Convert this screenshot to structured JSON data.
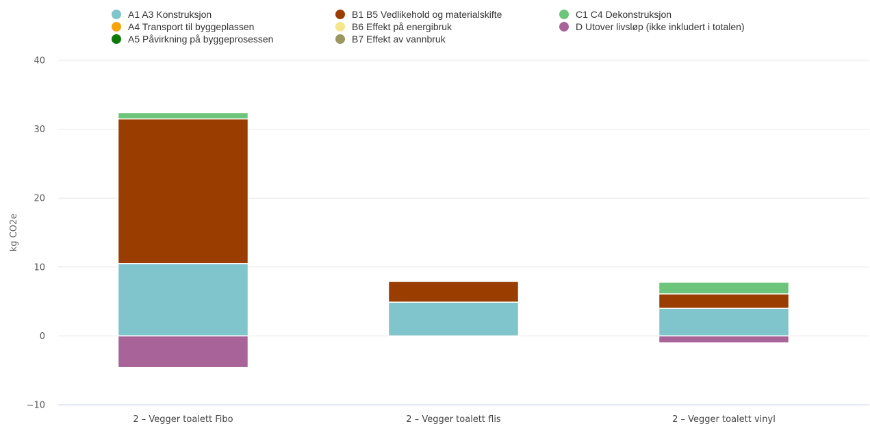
{
  "chart_data": {
    "type": "bar",
    "stacked": true,
    "title": "",
    "xlabel": "",
    "ylabel": "kg CO2e",
    "ylim": [
      -10,
      40
    ],
    "yticks": [
      40,
      30,
      20,
      10,
      0,
      -10
    ],
    "y_tick_labels": [
      "40",
      "30",
      "20",
      "10",
      "0",
      "−10"
    ],
    "grid": true,
    "legend_position": "top",
    "categories": [
      "2 – Vegger toalett Fibo",
      "2 – Vegger toalett flis",
      "2 – Vegger toalett vinyl"
    ],
    "series": [
      {
        "name": "A1 A3 Konstruksjon",
        "color": "#80c4cc",
        "values": [
          10.5,
          4.9,
          4.0
        ]
      },
      {
        "name": "A4 Transport til byggeplassen",
        "color": "#f5a50a",
        "values": [
          0,
          0,
          0
        ]
      },
      {
        "name": "A5 Påvirkning på byggeprosessen",
        "color": "#0a7a0a",
        "values": [
          0,
          0,
          0
        ]
      },
      {
        "name": "B1 B5 Vedlikehold og materialskifte",
        "color": "#993d00",
        "values": [
          21.0,
          3.0,
          2.1
        ]
      },
      {
        "name": "B6 Effekt på energibruk",
        "color": "#f5e68c",
        "values": [
          0,
          0,
          0
        ]
      },
      {
        "name": "B7 Effekt av vannbruk",
        "color": "#9c9660",
        "values": [
          0,
          0,
          0
        ]
      },
      {
        "name": "C1 C4 Dekonstruksjon",
        "color": "#6cc57a",
        "values": [
          0.9,
          0,
          1.7
        ]
      },
      {
        "name": "D Utover livsløp (ikke inkludert i totalen)",
        "color": "#a86499",
        "values": [
          -4.6,
          0,
          -1.0
        ]
      }
    ]
  }
}
